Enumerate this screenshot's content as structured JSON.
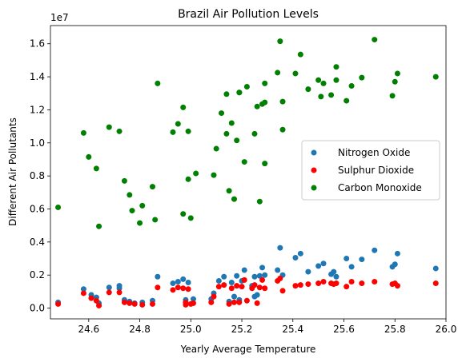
{
  "chart_data": {
    "type": "scatter",
    "title": "Brazil Air Pollution Levels",
    "xlabel": "Yearly Average Temperature",
    "ylabel": "Different Air Pollutants",
    "y_offset_label": "1e7",
    "xlim": [
      24.45,
      26.0
    ],
    "ylim": [
      -650000,
      17100000
    ],
    "x_ticks": [
      24.6,
      24.8,
      25.0,
      25.2,
      25.4,
      25.6,
      25.8,
      26.0
    ],
    "x_tick_labels": [
      "24.6",
      "24.8",
      "25.0",
      "25.2",
      "25.4",
      "25.6",
      "25.8",
      "26.0"
    ],
    "y_ticks": [
      0,
      2000000,
      4000000,
      6000000,
      8000000,
      10000000,
      12000000,
      14000000,
      16000000
    ],
    "y_tick_labels": [
      "0.0",
      "0.2",
      "0.4",
      "0.6",
      "0.8",
      "1.0",
      "1.2",
      "1.4",
      "1.6"
    ],
    "legend_position": "center-right",
    "grid": false,
    "series": [
      {
        "name": "Nitrogen Oxide",
        "color": "#1f77b4",
        "points": [
          [
            24.48,
            350000
          ],
          [
            24.58,
            1150000
          ],
          [
            24.61,
            800000
          ],
          [
            24.63,
            650000
          ],
          [
            24.64,
            300000
          ],
          [
            24.68,
            1250000
          ],
          [
            24.72,
            1350000
          ],
          [
            24.74,
            500000
          ],
          [
            24.76,
            400000
          ],
          [
            24.78,
            300000
          ],
          [
            24.81,
            350000
          ],
          [
            24.85,
            450000
          ],
          [
            24.87,
            1900000
          ],
          [
            24.93,
            1500000
          ],
          [
            24.95,
            1600000
          ],
          [
            24.97,
            1750000
          ],
          [
            24.98,
            500000
          ],
          [
            24.99,
            1550000
          ],
          [
            25.01,
            550000
          ],
          [
            25.08,
            550000
          ],
          [
            25.09,
            900000
          ],
          [
            25.11,
            1650000
          ],
          [
            25.13,
            1900000
          ],
          [
            25.15,
            400000
          ],
          [
            25.16,
            1550000
          ],
          [
            25.17,
            700000
          ],
          [
            25.18,
            1950000
          ],
          [
            25.19,
            500000
          ],
          [
            25.2,
            1650000
          ],
          [
            25.21,
            2300000
          ],
          [
            25.24,
            1350000
          ],
          [
            25.25,
            1900000
          ],
          [
            25.26,
            800000
          ],
          [
            25.27,
            1950000
          ],
          [
            25.28,
            2450000
          ],
          [
            25.29,
            2000000
          ],
          [
            25.34,
            2300000
          ],
          [
            25.35,
            3650000
          ],
          [
            25.36,
            2000000
          ],
          [
            25.41,
            3050000
          ],
          [
            25.43,
            3300000
          ],
          [
            25.46,
            2200000
          ],
          [
            25.5,
            2550000
          ],
          [
            25.52,
            2700000
          ],
          [
            25.55,
            2050000
          ],
          [
            25.56,
            2200000
          ],
          [
            25.57,
            1900000
          ],
          [
            25.61,
            3000000
          ],
          [
            25.63,
            2500000
          ],
          [
            25.67,
            2950000
          ],
          [
            25.72,
            3500000
          ],
          [
            25.79,
            2500000
          ],
          [
            25.8,
            2650000
          ],
          [
            25.81,
            3300000
          ],
          [
            25.96,
            2400000
          ],
          [
            24.72,
            1200000
          ],
          [
            25.25,
            700000
          ]
        ]
      },
      {
        "name": "Sulphur Dioxide",
        "color": "#ff0000",
        "points": [
          [
            24.48,
            250000
          ],
          [
            24.58,
            900000
          ],
          [
            24.61,
            600000
          ],
          [
            24.63,
            450000
          ],
          [
            24.64,
            150000
          ],
          [
            24.68,
            950000
          ],
          [
            24.72,
            950000
          ],
          [
            24.74,
            350000
          ],
          [
            24.76,
            300000
          ],
          [
            24.78,
            250000
          ],
          [
            24.81,
            200000
          ],
          [
            24.85,
            250000
          ],
          [
            24.87,
            1250000
          ],
          [
            24.93,
            1100000
          ],
          [
            24.95,
            1250000
          ],
          [
            24.97,
            1200000
          ],
          [
            24.98,
            200000
          ],
          [
            24.99,
            1150000
          ],
          [
            25.01,
            300000
          ],
          [
            25.08,
            350000
          ],
          [
            25.09,
            700000
          ],
          [
            25.11,
            1300000
          ],
          [
            25.13,
            1400000
          ],
          [
            25.15,
            250000
          ],
          [
            25.16,
            1200000
          ],
          [
            25.17,
            350000
          ],
          [
            25.18,
            1350000
          ],
          [
            25.19,
            350000
          ],
          [
            25.2,
            1300000
          ],
          [
            25.21,
            1700000
          ],
          [
            25.24,
            1200000
          ],
          [
            25.25,
            1400000
          ],
          [
            25.26,
            300000
          ],
          [
            25.27,
            1250000
          ],
          [
            25.28,
            1700000
          ],
          [
            25.29,
            1200000
          ],
          [
            25.34,
            1650000
          ],
          [
            25.35,
            1800000
          ],
          [
            25.36,
            1050000
          ],
          [
            25.41,
            1350000
          ],
          [
            25.43,
            1400000
          ],
          [
            25.46,
            1450000
          ],
          [
            25.5,
            1500000
          ],
          [
            25.52,
            1600000
          ],
          [
            25.55,
            1500000
          ],
          [
            25.56,
            1450000
          ],
          [
            25.57,
            1500000
          ],
          [
            25.61,
            1300000
          ],
          [
            25.63,
            1600000
          ],
          [
            25.67,
            1500000
          ],
          [
            25.72,
            1600000
          ],
          [
            25.79,
            1450000
          ],
          [
            25.8,
            1500000
          ],
          [
            25.81,
            1350000
          ],
          [
            25.96,
            1500000
          ],
          [
            25.0,
            250000
          ],
          [
            25.22,
            450000
          ],
          [
            24.98,
            350000
          ]
        ]
      },
      {
        "name": "Carbon Monoxide",
        "color": "#008000",
        "points": [
          [
            24.48,
            6100000
          ],
          [
            24.58,
            10600000
          ],
          [
            24.6,
            9150000
          ],
          [
            24.63,
            8450000
          ],
          [
            24.64,
            4950000
          ],
          [
            24.68,
            10950000
          ],
          [
            24.72,
            10700000
          ],
          [
            24.74,
            7700000
          ],
          [
            24.76,
            6850000
          ],
          [
            24.77,
            5900000
          ],
          [
            24.8,
            5150000
          ],
          [
            24.81,
            6200000
          ],
          [
            24.85,
            7350000
          ],
          [
            24.86,
            5350000
          ],
          [
            24.87,
            13600000
          ],
          [
            24.93,
            10650000
          ],
          [
            24.95,
            11150000
          ],
          [
            24.97,
            12150000
          ],
          [
            24.97,
            5700000
          ],
          [
            24.99,
            10700000
          ],
          [
            24.99,
            7800000
          ],
          [
            25.0,
            5450000
          ],
          [
            25.02,
            8150000
          ],
          [
            25.09,
            8050000
          ],
          [
            25.1,
            9650000
          ],
          [
            25.12,
            11800000
          ],
          [
            25.14,
            12950000
          ],
          [
            25.14,
            10550000
          ],
          [
            25.16,
            11200000
          ],
          [
            25.15,
            7100000
          ],
          [
            25.17,
            6600000
          ],
          [
            25.18,
            10150000
          ],
          [
            25.19,
            13050000
          ],
          [
            25.19,
            13050000
          ],
          [
            25.21,
            8850000
          ],
          [
            25.22,
            13400000
          ],
          [
            25.25,
            10550000
          ],
          [
            25.26,
            12200000
          ],
          [
            25.28,
            12350000
          ],
          [
            25.27,
            6450000
          ],
          [
            25.29,
            12450000
          ],
          [
            25.29,
            13600000
          ],
          [
            25.29,
            8750000
          ],
          [
            25.34,
            14250000
          ],
          [
            25.35,
            16150000
          ],
          [
            25.36,
            12500000
          ],
          [
            25.36,
            10800000
          ],
          [
            25.41,
            14200000
          ],
          [
            25.43,
            15350000
          ],
          [
            25.46,
            13250000
          ],
          [
            25.5,
            13800000
          ],
          [
            25.51,
            12800000
          ],
          [
            25.52,
            13600000
          ],
          [
            25.55,
            12900000
          ],
          [
            25.57,
            14600000
          ],
          [
            25.57,
            13800000
          ],
          [
            25.61,
            12550000
          ],
          [
            25.63,
            13450000
          ],
          [
            25.67,
            13950000
          ],
          [
            25.72,
            16250000
          ],
          [
            25.79,
            12850000
          ],
          [
            25.8,
            13700000
          ],
          [
            25.81,
            14200000
          ],
          [
            25.96,
            14000000
          ]
        ]
      }
    ]
  }
}
